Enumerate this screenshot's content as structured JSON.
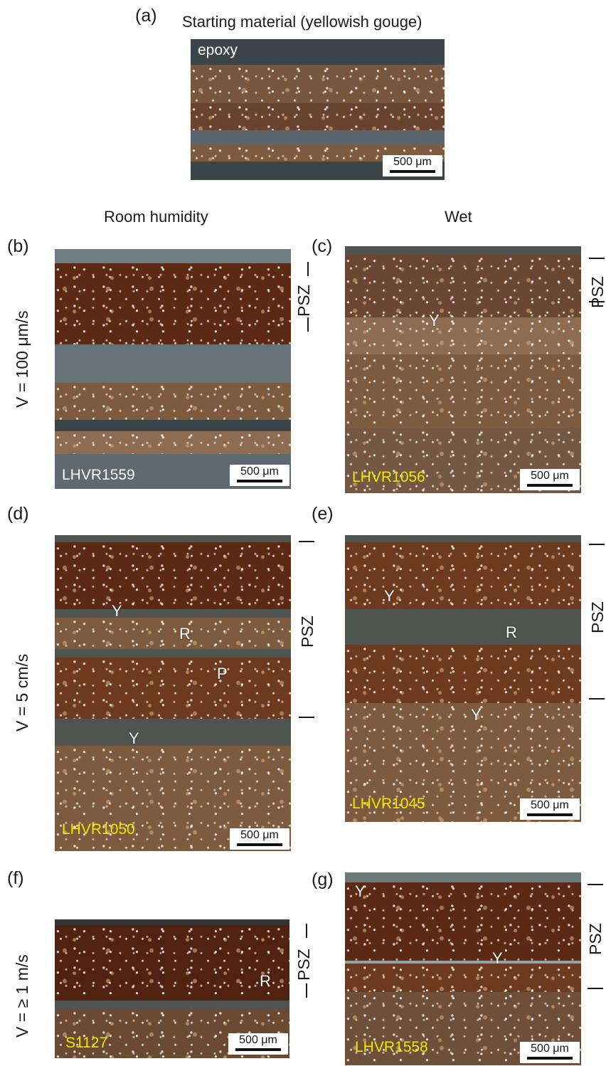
{
  "title": "Starting material (yellowish gouge)",
  "column_headers": {
    "left": "Room humidity",
    "right": "Wet"
  },
  "row_labels": {
    "b": "V = 100 μm/s",
    "d": "V = 5 cm/s",
    "f": "V = ≥ 1 m/s"
  },
  "scale_bar_text": "500 μm",
  "zone_label": "PSZ",
  "panels": {
    "a": {
      "tag": "(a)",
      "annotation": "epoxy"
    },
    "b": {
      "tag": "(b)",
      "sample": "LHVR1559"
    },
    "c": {
      "tag": "(c)",
      "sample": "LHVR1056",
      "markers": [
        "Y"
      ]
    },
    "d": {
      "tag": "(d)",
      "sample": "LHVR1050",
      "markers": [
        "Y",
        "R",
        "P",
        "Y"
      ]
    },
    "e": {
      "tag": "(e)",
      "sample": "LHVR1045",
      "markers": [
        "Y",
        "R",
        "Y"
      ]
    },
    "f": {
      "tag": "(f)",
      "sample": "S1127",
      "markers": [
        "R"
      ]
    },
    "g": {
      "tag": "(g)",
      "sample": "LHVR1558",
      "markers": [
        "Y",
        "Y"
      ]
    }
  },
  "colors": {
    "sample_label_yellow": "#f2e600",
    "sample_label_white": "#ffffff",
    "epoxy": "#3b4448",
    "gouge_dark_red": "#5c2a14",
    "gouge_tan": "#7e5a3e"
  }
}
